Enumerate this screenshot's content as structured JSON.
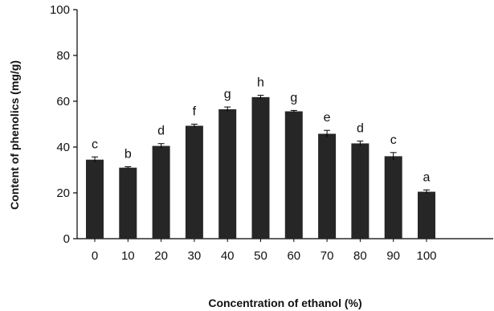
{
  "chart_data": {
    "type": "bar",
    "xlabel": "Concentration of  ethanol (%)",
    "ylabel": "Content of phenolics (mg/g)",
    "categories": [
      "0",
      "10",
      "20",
      "30",
      "40",
      "50",
      "60",
      "70",
      "80",
      "90",
      "100"
    ],
    "values": [
      34.5,
      31,
      40.5,
      49.3,
      56.5,
      61.8,
      55.6,
      45.8,
      41.6,
      36,
      20.5
    ],
    "errors": [
      1.2,
      0.4,
      1.0,
      0.7,
      1.0,
      0.8,
      0.4,
      1.5,
      1.0,
      1.6,
      0.8
    ],
    "significance_labels": [
      "c",
      "b",
      "d",
      "f",
      "g",
      "h",
      "g",
      "e",
      "d",
      "c",
      "a"
    ],
    "ylim": [
      0,
      100
    ],
    "yticks": [
      0,
      20,
      40,
      60,
      80,
      100
    ],
    "bar_color": "#262626",
    "grid": false
  }
}
